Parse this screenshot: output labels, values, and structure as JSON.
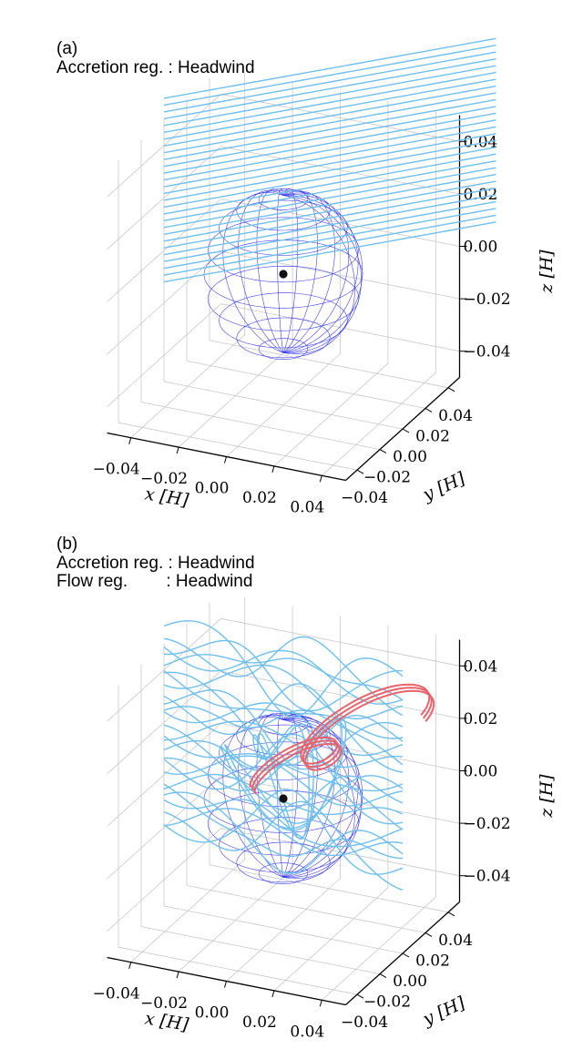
{
  "colors": {
    "streamline": "#6fbfee",
    "accreted_streamline": "#e8636b",
    "sphere_wire": "#3333ee",
    "planet": "#111111",
    "grid": "#c8c8c8"
  },
  "chart_data": [
    {
      "type": "3d-line",
      "panel_label": "(a)",
      "annotations": [
        "Accretion reg. : Headwind"
      ],
      "xlabel": "$x$ [$H$]",
      "xlabel_text": "x [H]",
      "ylabel": "$y$ [$H$]",
      "ylabel_text": "y [H]",
      "zlabel": "$z$ [$H$]",
      "zlabel_text": "z [H]",
      "xlim": [
        -0.05,
        0.05
      ],
      "ylim": [
        -0.05,
        0.05
      ],
      "zlim": [
        -0.05,
        0.05
      ],
      "xticks": [
        -0.04,
        -0.02,
        0.0,
        0.02,
        0.04
      ],
      "yticks": [
        -0.04,
        -0.02,
        0.0,
        0.02,
        0.04
      ],
      "zticks": [
        -0.04,
        -0.02,
        0.0,
        0.02,
        0.04
      ],
      "xtick_labels": [
        "−0.04",
        "−0.02",
        "0.00",
        "0.02",
        "0.04"
      ],
      "ytick_labels": [
        "−0.04",
        "−0.02",
        "0.00",
        "0.02",
        "0.04"
      ],
      "ztick_labels": [
        "−0.04",
        "−0.02",
        "0.00",
        "0.02",
        "0.04"
      ],
      "grid": true,
      "planet_position": [
        0,
        0,
        0
      ],
      "accretion_sphere_radius": 0.03,
      "series": [
        {
          "name": "streamlines",
          "color": "#6fbfee",
          "count": 28,
          "z_range": [
            -0.012,
            0.058
          ]
        }
      ]
    },
    {
      "type": "3d-line",
      "panel_label": "(b)",
      "annotations": [
        "Accretion reg. : Headwind",
        "Flow reg.        : Headwind"
      ],
      "xlabel": "$x$ [$H$]",
      "xlabel_text": "x [H]",
      "ylabel": "$y$ [$H$]",
      "ylabel_text": "y [H]",
      "zlabel": "$z$ [$H$]",
      "zlabel_text": "z [H]",
      "xlim": [
        -0.05,
        0.05
      ],
      "ylim": [
        -0.05,
        0.05
      ],
      "zlim": [
        -0.05,
        0.05
      ],
      "xticks": [
        -0.04,
        -0.02,
        0.0,
        0.02,
        0.04
      ],
      "yticks": [
        -0.04,
        -0.02,
        0.0,
        0.02,
        0.04
      ],
      "zticks": [
        -0.04,
        -0.02,
        0.0,
        0.02,
        0.04
      ],
      "xtick_labels": [
        "−0.04",
        "−0.02",
        "0.00",
        "0.02",
        "0.04"
      ],
      "ytick_labels": [
        "−0.04",
        "−0.02",
        "0.00",
        "0.02",
        "0.04"
      ],
      "ztick_labels": [
        "−0.04",
        "−0.02",
        "0.00",
        "0.02",
        "0.04"
      ],
      "grid": true,
      "planet_position": [
        0,
        0,
        0
      ],
      "accretion_sphere_radius": 0.03,
      "series": [
        {
          "name": "streamlines (perturbed)",
          "color": "#6fbfee",
          "count": 26
        },
        {
          "name": "accreted streamlines",
          "color": "#e8636b",
          "count": 3
        }
      ]
    }
  ]
}
